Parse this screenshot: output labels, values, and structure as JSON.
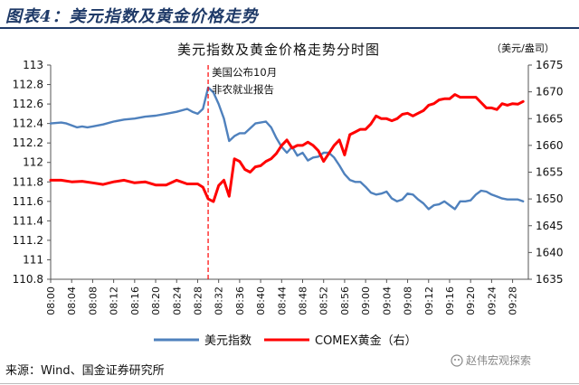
{
  "figure": {
    "label": "图表4：美元指数及黄金价格走势",
    "source": "来源：Wind、国金证券研究所",
    "watermark": "赵伟宏观探索"
  },
  "chart_data": {
    "type": "line",
    "title": "美元指数及黄金价格走势分时图",
    "right_unit": "（美元/盎司）",
    "annotation": [
      "美国公布10月",
      "非农就业报告"
    ],
    "event_time": "08:30",
    "grid": false,
    "legend_position": "bottom",
    "x_ticks": [
      "08:00",
      "08:04",
      "08:08",
      "08:12",
      "08:16",
      "08:20",
      "08:24",
      "08:28",
      "08:32",
      "08:36",
      "08:40",
      "08:44",
      "08:48",
      "08:52",
      "08:56",
      "09:00",
      "09:04",
      "09:08",
      "09:12",
      "09:16",
      "09:20",
      "09:24",
      "09:28"
    ],
    "x_range": [
      "08:00",
      "09:31"
    ],
    "y_left": {
      "range": [
        110.8,
        113
      ],
      "ticks": [
        "110.8",
        "111",
        "111.2",
        "111.4",
        "111.6",
        "111.8",
        "112",
        "112.2",
        "112.4",
        "112.6",
        "112.8",
        "113"
      ]
    },
    "y_right": {
      "range": [
        1635,
        1675
      ],
      "ticks": [
        "1635",
        "1640",
        "1645",
        "1650",
        "1655",
        "1660",
        "1665",
        "1670",
        "1675"
      ]
    },
    "series": [
      {
        "name": "美元指数",
        "axis": "left",
        "color": "#4f81bd",
        "x": [
          "08:00",
          "08:02",
          "08:03",
          "08:04",
          "08:05",
          "08:06",
          "08:07",
          "08:08",
          "08:10",
          "08:12",
          "08:14",
          "08:16",
          "08:18",
          "08:20",
          "08:22",
          "08:24",
          "08:26",
          "08:27",
          "08:28",
          "08:29",
          "08:30",
          "08:31",
          "08:32",
          "08:33",
          "08:34",
          "08:35",
          "08:36",
          "08:37",
          "08:38",
          "08:39",
          "08:40",
          "08:41",
          "08:42",
          "08:43",
          "08:44",
          "08:45",
          "08:46",
          "08:47",
          "08:48",
          "08:49",
          "08:50",
          "08:51",
          "08:52",
          "08:53",
          "08:54",
          "08:55",
          "08:56",
          "08:57",
          "08:58",
          "08:59",
          "09:00",
          "09:01",
          "09:02",
          "09:03",
          "09:04",
          "09:05",
          "09:06",
          "09:07",
          "09:08",
          "09:09",
          "09:10",
          "09:11",
          "09:12",
          "09:13",
          "09:14",
          "09:15",
          "09:16",
          "09:17",
          "09:18",
          "09:19",
          "09:20",
          "09:21",
          "09:22",
          "09:23",
          "09:24",
          "09:25",
          "09:26",
          "09:27",
          "09:28",
          "09:29",
          "09:30"
        ],
        "values": [
          112.4,
          112.41,
          112.4,
          112.38,
          112.36,
          112.37,
          112.36,
          112.37,
          112.39,
          112.42,
          112.44,
          112.45,
          112.47,
          112.48,
          112.5,
          112.52,
          112.55,
          112.52,
          112.5,
          112.55,
          112.77,
          112.72,
          112.6,
          112.45,
          112.22,
          112.27,
          112.3,
          112.3,
          112.35,
          112.4,
          112.41,
          112.42,
          112.36,
          112.25,
          112.16,
          112.1,
          112.16,
          112.07,
          112.1,
          112.02,
          112.05,
          112.06,
          112.1,
          112.1,
          112.05,
          111.97,
          111.88,
          111.82,
          111.8,
          111.8,
          111.75,
          111.69,
          111.67,
          111.68,
          111.7,
          111.63,
          111.6,
          111.62,
          111.68,
          111.67,
          111.62,
          111.58,
          111.52,
          111.56,
          111.57,
          111.6,
          111.56,
          111.52,
          111.6,
          111.6,
          111.61,
          111.67,
          111.71,
          111.7,
          111.67,
          111.65,
          111.63,
          111.62,
          111.62,
          111.62,
          111.6
        ]
      },
      {
        "name": "COMEX黄金（右）",
        "axis": "right",
        "color": "#ff0000",
        "x": [
          "08:00",
          "08:02",
          "08:04",
          "08:06",
          "08:08",
          "08:10",
          "08:12",
          "08:14",
          "08:16",
          "08:18",
          "08:20",
          "08:22",
          "08:24",
          "08:26",
          "08:28",
          "08:29",
          "08:30",
          "08:31",
          "08:32",
          "08:33",
          "08:34",
          "08:35",
          "08:36",
          "08:37",
          "08:38",
          "08:39",
          "08:40",
          "08:41",
          "08:42",
          "08:43",
          "08:44",
          "08:45",
          "08:46",
          "08:47",
          "08:48",
          "08:49",
          "08:50",
          "08:51",
          "08:52",
          "08:53",
          "08:54",
          "08:55",
          "08:56",
          "08:57",
          "08:58",
          "08:59",
          "09:00",
          "09:01",
          "09:02",
          "09:03",
          "09:04",
          "09:05",
          "09:06",
          "09:07",
          "09:08",
          "09:09",
          "09:10",
          "09:11",
          "09:12",
          "09:13",
          "09:14",
          "09:15",
          "09:16",
          "09:17",
          "09:18",
          "09:19",
          "09:20",
          "09:21",
          "09:22",
          "09:23",
          "09:24",
          "09:25",
          "09:26",
          "09:27",
          "09:28",
          "09:29",
          "09:30"
        ],
        "values": [
          1653.5,
          1653.5,
          1653.2,
          1653.3,
          1653,
          1652.7,
          1653.2,
          1653.5,
          1653,
          1653.2,
          1652.6,
          1652.6,
          1653.5,
          1652.8,
          1652.8,
          1652.2,
          1650,
          1649.5,
          1652.5,
          1653.5,
          1650.5,
          1657.5,
          1657,
          1655.5,
          1655,
          1656,
          1656.2,
          1657,
          1657.5,
          1658.5,
          1660,
          1661,
          1659.5,
          1660,
          1660,
          1660.6,
          1660,
          1659,
          1657,
          1658.5,
          1660,
          1661,
          1658.2,
          1662,
          1662.5,
          1663,
          1663,
          1664,
          1665.5,
          1665,
          1665,
          1664.6,
          1665,
          1665.8,
          1666,
          1665.5,
          1666,
          1666.5,
          1667.5,
          1667.8,
          1668.5,
          1668.7,
          1668.7,
          1669.5,
          1669,
          1669,
          1669,
          1669,
          1668,
          1667,
          1667,
          1666.7,
          1667.8,
          1667.5,
          1667.8,
          1667.7,
          1668.2
        ]
      }
    ]
  }
}
